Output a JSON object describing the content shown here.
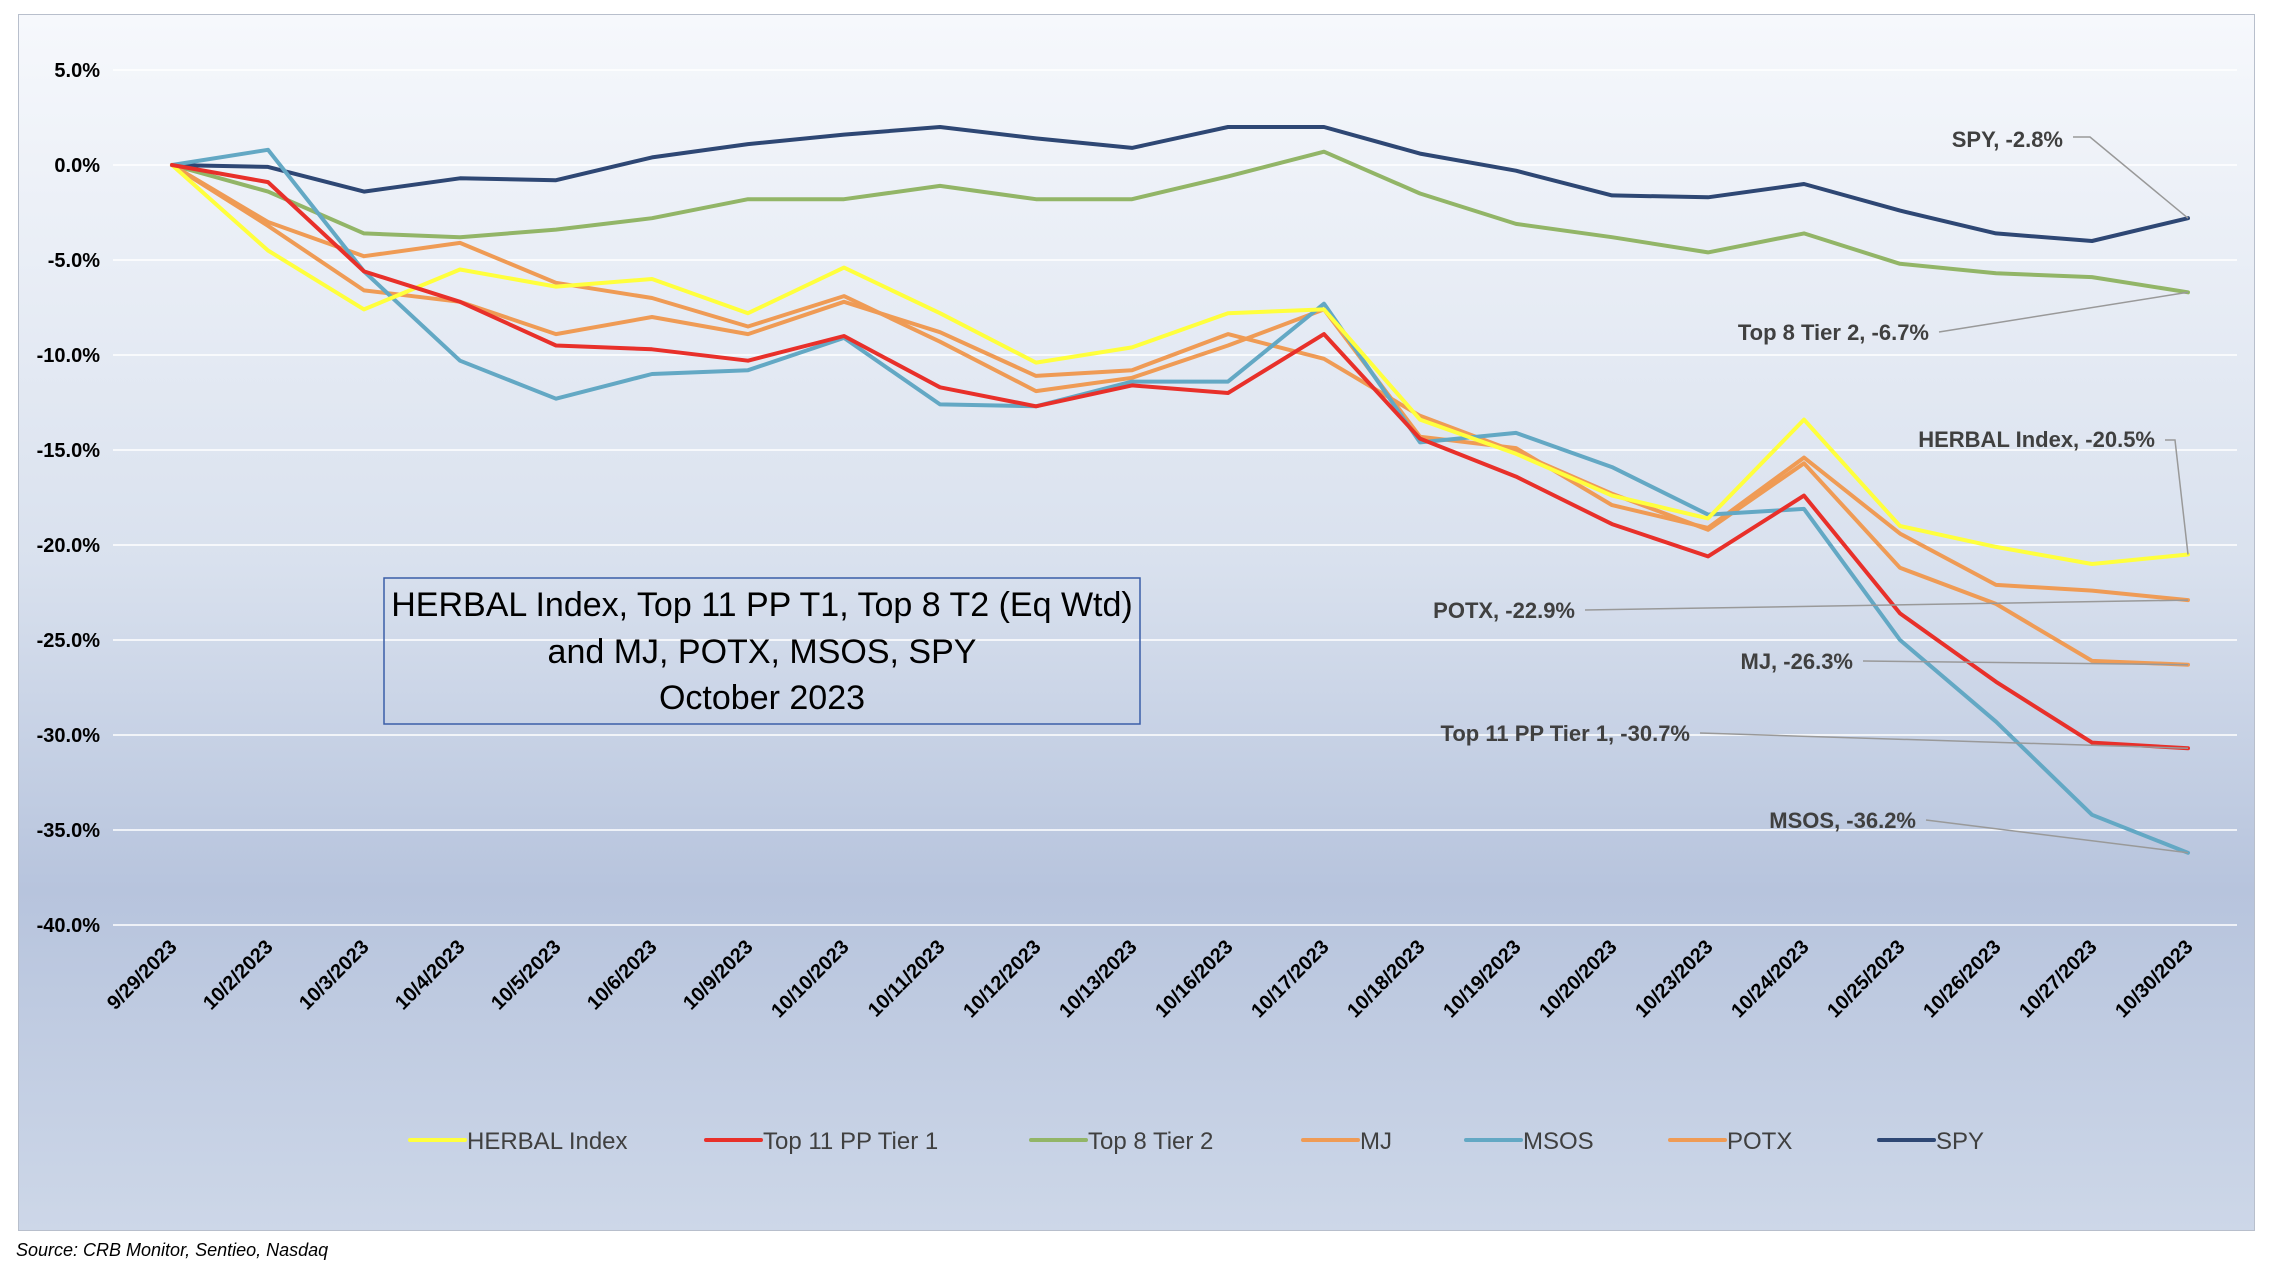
{
  "chart_data": {
    "type": "line",
    "title_lines": [
      "HERBAL Index, Top 11 PP T1, Top 8 T2  (Eq Wtd)",
      "and MJ, POTX, MSOS, SPY",
      "October 2023"
    ],
    "source": "Source: CRB Monitor, Sentieo, Nasdaq",
    "y_ticks": [
      "5.0%",
      "0.0%",
      "-5.0%",
      "-10.0%",
      "-15.0%",
      "-20.0%",
      "-25.0%",
      "-30.0%",
      "-35.0%",
      "-40.0%"
    ],
    "ylim": [
      -40,
      5
    ],
    "y_unit": "%",
    "grid": "horizontal",
    "legend_position": "bottom",
    "categories": [
      "9/29/2023",
      "10/2/2023",
      "10/3/2023",
      "10/4/2023",
      "10/5/2023",
      "10/6/2023",
      "10/9/2023",
      "10/10/2023",
      "10/11/2023",
      "10/12/2023",
      "10/13/2023",
      "10/16/2023",
      "10/17/2023",
      "10/18/2023",
      "10/19/2023",
      "10/20/2023",
      "10/23/2023",
      "10/24/2023",
      "10/25/2023",
      "10/26/2023",
      "10/27/2023",
      "10/30/2023"
    ],
    "series": [
      {
        "name": "HERBAL Index",
        "color": "#ffff3d",
        "values": [
          0,
          -4.5,
          -7.6,
          -5.5,
          -6.4,
          -6.0,
          -7.8,
          -5.4,
          -7.8,
          -10.4,
          -9.6,
          -7.8,
          -7.6,
          -13.4,
          -15.2,
          -17.4,
          -18.6,
          -13.4,
          -19.0,
          -20.1,
          -21.0,
          -20.5
        ]
      },
      {
        "name": "Top 11 PP Tier 1",
        "color": "#e8302a",
        "values": [
          0,
          -0.9,
          -5.6,
          -7.2,
          -9.5,
          -9.7,
          -10.3,
          -9.0,
          -11.7,
          -12.7,
          -11.6,
          -12.0,
          -8.9,
          -14.4,
          -16.4,
          -18.9,
          -20.6,
          -17.4,
          -23.6,
          -27.2,
          -30.4,
          -30.7
        ]
      },
      {
        "name": "Top 8 Tier 2",
        "color": "#92b567",
        "values": [
          0,
          -1.4,
          -3.6,
          -3.8,
          -3.4,
          -2.8,
          -1.8,
          -1.8,
          -1.1,
          -1.8,
          -1.8,
          -0.6,
          0.7,
          -1.5,
          -3.1,
          -3.8,
          -4.6,
          -3.6,
          -5.2,
          -5.7,
          -5.9,
          -6.7
        ]
      },
      {
        "name": "MJ",
        "color": "#ef9b55",
        "values": [
          0,
          -3.2,
          -6.6,
          -7.2,
          -8.9,
          -8.0,
          -8.9,
          -7.2,
          -8.8,
          -11.1,
          -10.8,
          -8.9,
          -10.2,
          -13.2,
          -15.1,
          -17.3,
          -19.2,
          -15.7,
          -21.2,
          -23.1,
          -26.1,
          -26.3
        ]
      },
      {
        "name": "MSOS",
        "color": "#63a8c4",
        "values": [
          0,
          0.8,
          -5.6,
          -10.3,
          -12.3,
          -11.0,
          -10.8,
          -9.1,
          -12.6,
          -12.7,
          -11.4,
          -11.4,
          -7.3,
          -14.6,
          -14.1,
          -15.9,
          -18.4,
          -18.1,
          -25.0,
          -29.3,
          -34.2,
          -36.2
        ]
      },
      {
        "name": "POTX",
        "color": "#ef9b55",
        "values": [
          0,
          -3.0,
          -4.8,
          -4.1,
          -6.2,
          -7.0,
          -8.5,
          -6.9,
          -9.3,
          -11.9,
          -11.2,
          -9.5,
          -7.6,
          -14.3,
          -14.9,
          -17.9,
          -19.1,
          -15.4,
          -19.4,
          -22.1,
          -22.4,
          -22.9
        ]
      },
      {
        "name": "SPY",
        "color": "#2e4774",
        "values": [
          0,
          -0.1,
          -1.4,
          -0.7,
          -0.8,
          0.4,
          1.1,
          1.6,
          2.0,
          1.4,
          0.9,
          2.0,
          2.0,
          0.6,
          -0.3,
          -1.6,
          -1.7,
          -1.0,
          -2.4,
          -3.6,
          -4.0,
          -2.8
        ]
      }
    ],
    "end_labels": [
      {
        "series": "SPY",
        "text": "SPY, -2.8%"
      },
      {
        "series": "Top 8 Tier 2",
        "text": "Top 8 Tier 2, -6.7%"
      },
      {
        "series": "HERBAL Index",
        "text": "HERBAL Index, -20.5%"
      },
      {
        "series": "POTX",
        "text": "POTX, -22.9%"
      },
      {
        "series": "MJ",
        "text": "MJ, -26.3%"
      },
      {
        "series": "Top 11 PP Tier 1",
        "text": "Top 11 PP Tier 1, -30.7%"
      },
      {
        "series": "MSOS",
        "text": "MSOS, -36.2%"
      }
    ],
    "gridline_color": "#ffffff",
    "leader_line_color": "#999999"
  }
}
